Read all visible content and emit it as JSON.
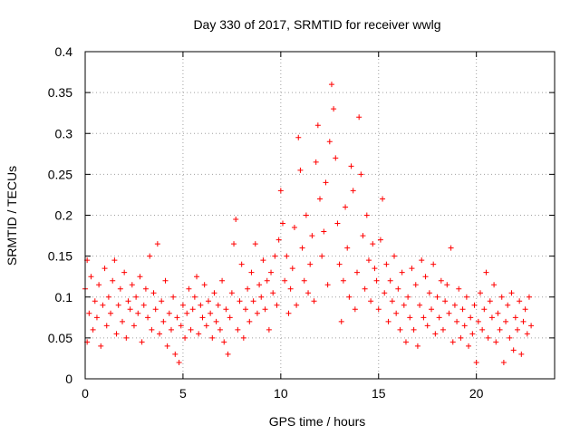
{
  "chart_data": {
    "type": "scatter",
    "title": "Day 330 of 2017, SRMTID for receiver wwlg",
    "xlabel": "GPS time / hours",
    "ylabel": "SRMTID / TECUs",
    "xlim": [
      0,
      24
    ],
    "ylim": [
      0,
      0.4
    ],
    "xticks": [
      0,
      5,
      10,
      15,
      20
    ],
    "xtick_labels": [
      "0",
      "5",
      "10",
      "15",
      "20"
    ],
    "yticks": [
      0,
      0.05,
      0.1,
      0.15,
      0.2,
      0.25,
      0.3,
      0.35,
      0.4
    ],
    "ytick_labels": [
      "0",
      "0.05",
      "0.1",
      "0.15",
      "0.2",
      "0.25",
      "0.3",
      "0.35",
      "0.4"
    ],
    "grid": true,
    "marker": "plus",
    "color": "#ff0000",
    "series": [
      {
        "name": "SRMTID",
        "points": [
          [
            0.0,
            0.11
          ],
          [
            0.1,
            0.145
          ],
          [
            0.1,
            0.045
          ],
          [
            0.2,
            0.08
          ],
          [
            0.3,
            0.125
          ],
          [
            0.4,
            0.06
          ],
          [
            0.5,
            0.095
          ],
          [
            0.6,
            0.075
          ],
          [
            0.7,
            0.115
          ],
          [
            0.8,
            0.04
          ],
          [
            0.9,
            0.09
          ],
          [
            1.0,
            0.135
          ],
          [
            1.1,
            0.065
          ],
          [
            1.2,
            0.1
          ],
          [
            1.3,
            0.08
          ],
          [
            1.4,
            0.12
          ],
          [
            1.5,
            0.145
          ],
          [
            1.6,
            0.055
          ],
          [
            1.7,
            0.09
          ],
          [
            1.8,
            0.11
          ],
          [
            1.9,
            0.07
          ],
          [
            2.0,
            0.13
          ],
          [
            2.1,
            0.05
          ],
          [
            2.2,
            0.095
          ],
          [
            2.3,
            0.085
          ],
          [
            2.4,
            0.115
          ],
          [
            2.5,
            0.065
          ],
          [
            2.6,
            0.1
          ],
          [
            2.7,
            0.08
          ],
          [
            2.8,
            0.125
          ],
          [
            2.9,
            0.045
          ],
          [
            3.0,
            0.09
          ],
          [
            3.1,
            0.11
          ],
          [
            3.2,
            0.075
          ],
          [
            3.3,
            0.15
          ],
          [
            3.4,
            0.06
          ],
          [
            3.5,
            0.105
          ],
          [
            3.6,
            0.085
          ],
          [
            3.7,
            0.165
          ],
          [
            3.8,
            0.055
          ],
          [
            3.9,
            0.095
          ],
          [
            4.0,
            0.07
          ],
          [
            4.1,
            0.12
          ],
          [
            4.2,
            0.04
          ],
          [
            4.3,
            0.08
          ],
          [
            4.4,
            0.06
          ],
          [
            4.5,
            0.1
          ],
          [
            4.6,
            0.03
          ],
          [
            4.7,
            0.075
          ],
          [
            4.8,
            0.02
          ],
          [
            4.9,
            0.065
          ],
          [
            5.0,
            0.09
          ],
          [
            5.1,
            0.05
          ],
          [
            5.2,
            0.08
          ],
          [
            5.3,
            0.11
          ],
          [
            5.4,
            0.06
          ],
          [
            5.5,
            0.085
          ],
          [
            5.6,
            0.1
          ],
          [
            5.7,
            0.125
          ],
          [
            5.8,
            0.055
          ],
          [
            5.9,
            0.09
          ],
          [
            6.0,
            0.075
          ],
          [
            6.1,
            0.115
          ],
          [
            6.2,
            0.065
          ],
          [
            6.3,
            0.095
          ],
          [
            6.4,
            0.08
          ],
          [
            6.5,
            0.05
          ],
          [
            6.6,
            0.105
          ],
          [
            6.7,
            0.07
          ],
          [
            6.8,
            0.09
          ],
          [
            6.9,
            0.06
          ],
          [
            7.0,
            0.12
          ],
          [
            7.1,
            0.045
          ],
          [
            7.2,
            0.085
          ],
          [
            7.3,
            0.03
          ],
          [
            7.4,
            0.075
          ],
          [
            7.5,
            0.105
          ],
          [
            7.6,
            0.165
          ],
          [
            7.7,
            0.195
          ],
          [
            7.8,
            0.06
          ],
          [
            7.9,
            0.095
          ],
          [
            8.0,
            0.14
          ],
          [
            8.1,
            0.05
          ],
          [
            8.2,
            0.085
          ],
          [
            8.3,
            0.11
          ],
          [
            8.4,
            0.07
          ],
          [
            8.5,
            0.13
          ],
          [
            8.6,
            0.095
          ],
          [
            8.7,
            0.165
          ],
          [
            8.8,
            0.08
          ],
          [
            8.9,
            0.115
          ],
          [
            9.0,
            0.1
          ],
          [
            9.1,
            0.145
          ],
          [
            9.2,
            0.085
          ],
          [
            9.3,
            0.12
          ],
          [
            9.4,
            0.06
          ],
          [
            9.5,
            0.13
          ],
          [
            9.6,
            0.105
          ],
          [
            9.7,
            0.15
          ],
          [
            9.8,
            0.09
          ],
          [
            9.9,
            0.17
          ],
          [
            10.0,
            0.23
          ],
          [
            10.1,
            0.19
          ],
          [
            10.2,
            0.12
          ],
          [
            10.3,
            0.15
          ],
          [
            10.4,
            0.08
          ],
          [
            10.5,
            0.11
          ],
          [
            10.6,
            0.135
          ],
          [
            10.7,
            0.185
          ],
          [
            10.8,
            0.09
          ],
          [
            10.9,
            0.295
          ],
          [
            11.0,
            0.255
          ],
          [
            11.1,
            0.16
          ],
          [
            11.2,
            0.12
          ],
          [
            11.3,
            0.2
          ],
          [
            11.4,
            0.105
          ],
          [
            11.5,
            0.14
          ],
          [
            11.6,
            0.175
          ],
          [
            11.7,
            0.095
          ],
          [
            11.8,
            0.265
          ],
          [
            11.9,
            0.31
          ],
          [
            12.0,
            0.22
          ],
          [
            12.1,
            0.15
          ],
          [
            12.2,
            0.18
          ],
          [
            12.3,
            0.24
          ],
          [
            12.4,
            0.115
          ],
          [
            12.5,
            0.29
          ],
          [
            12.6,
            0.36
          ],
          [
            12.7,
            0.33
          ],
          [
            12.8,
            0.27
          ],
          [
            12.9,
            0.19
          ],
          [
            13.0,
            0.14
          ],
          [
            13.1,
            0.07
          ],
          [
            13.2,
            0.12
          ],
          [
            13.3,
            0.21
          ],
          [
            13.4,
            0.16
          ],
          [
            13.5,
            0.1
          ],
          [
            13.6,
            0.26
          ],
          [
            13.7,
            0.23
          ],
          [
            13.8,
            0.085
          ],
          [
            13.9,
            0.13
          ],
          [
            14.0,
            0.32
          ],
          [
            14.1,
            0.25
          ],
          [
            14.2,
            0.175
          ],
          [
            14.3,
            0.11
          ],
          [
            14.4,
            0.2
          ],
          [
            14.5,
            0.145
          ],
          [
            14.6,
            0.095
          ],
          [
            14.7,
            0.165
          ],
          [
            14.8,
            0.135
          ],
          [
            14.9,
            0.12
          ],
          [
            15.0,
            0.085
          ],
          [
            15.1,
            0.17
          ],
          [
            15.2,
            0.22
          ],
          [
            15.3,
            0.105
          ],
          [
            15.4,
            0.14
          ],
          [
            15.5,
            0.07
          ],
          [
            15.6,
            0.12
          ],
          [
            15.7,
            0.095
          ],
          [
            15.8,
            0.15
          ],
          [
            15.9,
            0.08
          ],
          [
            16.0,
            0.11
          ],
          [
            16.1,
            0.06
          ],
          [
            16.2,
            0.13
          ],
          [
            16.3,
            0.09
          ],
          [
            16.4,
            0.045
          ],
          [
            16.5,
            0.1
          ],
          [
            16.6,
            0.075
          ],
          [
            16.7,
            0.135
          ],
          [
            16.8,
            0.06
          ],
          [
            16.9,
            0.115
          ],
          [
            17.0,
            0.04
          ],
          [
            17.1,
            0.09
          ],
          [
            17.2,
            0.145
          ],
          [
            17.3,
            0.075
          ],
          [
            17.4,
            0.125
          ],
          [
            17.5,
            0.065
          ],
          [
            17.6,
            0.105
          ],
          [
            17.7,
            0.085
          ],
          [
            17.8,
            0.14
          ],
          [
            17.9,
            0.055
          ],
          [
            18.0,
            0.1
          ],
          [
            18.1,
            0.075
          ],
          [
            18.2,
            0.12
          ],
          [
            18.3,
            0.06
          ],
          [
            18.4,
            0.095
          ],
          [
            18.5,
            0.115
          ],
          [
            18.6,
            0.08
          ],
          [
            18.7,
            0.16
          ],
          [
            18.8,
            0.045
          ],
          [
            18.9,
            0.09
          ],
          [
            19.0,
            0.07
          ],
          [
            19.1,
            0.11
          ],
          [
            19.2,
            0.05
          ],
          [
            19.3,
            0.085
          ],
          [
            19.4,
            0.065
          ],
          [
            19.5,
            0.1
          ],
          [
            19.6,
            0.04
          ],
          [
            19.7,
            0.075
          ],
          [
            19.8,
            0.055
          ],
          [
            19.9,
            0.09
          ],
          [
            20.0,
            0.02
          ],
          [
            20.1,
            0.07
          ],
          [
            20.2,
            0.105
          ],
          [
            20.3,
            0.06
          ],
          [
            20.4,
            0.085
          ],
          [
            20.5,
            0.13
          ],
          [
            20.6,
            0.05
          ],
          [
            20.7,
            0.095
          ],
          [
            20.8,
            0.075
          ],
          [
            20.9,
            0.115
          ],
          [
            21.0,
            0.045
          ],
          [
            21.1,
            0.08
          ],
          [
            21.2,
            0.06
          ],
          [
            21.3,
            0.1
          ],
          [
            21.4,
            0.02
          ],
          [
            21.5,
            0.07
          ],
          [
            21.6,
            0.09
          ],
          [
            21.7,
            0.05
          ],
          [
            21.8,
            0.105
          ],
          [
            21.9,
            0.035
          ],
          [
            22.0,
            0.075
          ],
          [
            22.1,
            0.06
          ],
          [
            22.2,
            0.095
          ],
          [
            22.3,
            0.03
          ],
          [
            22.4,
            0.07
          ],
          [
            22.5,
            0.085
          ],
          [
            22.6,
            0.055
          ],
          [
            22.7,
            0.1
          ],
          [
            22.8,
            0.065
          ]
        ]
      }
    ]
  }
}
